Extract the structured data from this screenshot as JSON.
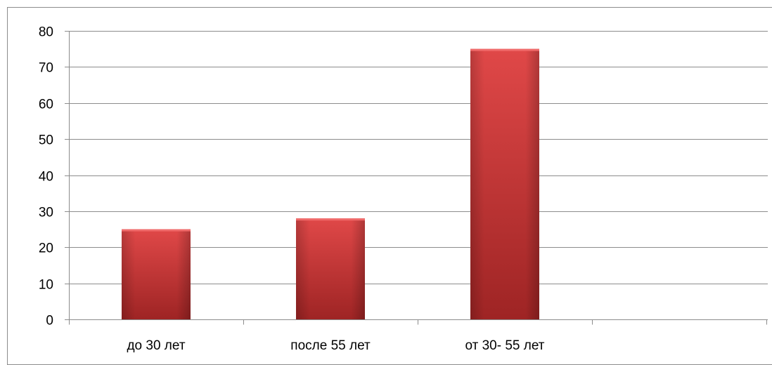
{
  "chart_data": {
    "type": "bar",
    "categories": [
      "до 30 лет",
      "после 55 лет",
      "от 30- 55 лет"
    ],
    "values": [
      25,
      28,
      75
    ],
    "title": "",
    "xlabel": "",
    "ylabel": "",
    "ylim": [
      0,
      80
    ],
    "yticks": [
      0,
      10,
      20,
      30,
      40,
      50,
      60,
      70,
      80
    ],
    "grid": true,
    "legend": "none",
    "bar_color": "#c83232",
    "bar_color_light": "#e04848",
    "bar_color_dark": "#9e2424"
  }
}
